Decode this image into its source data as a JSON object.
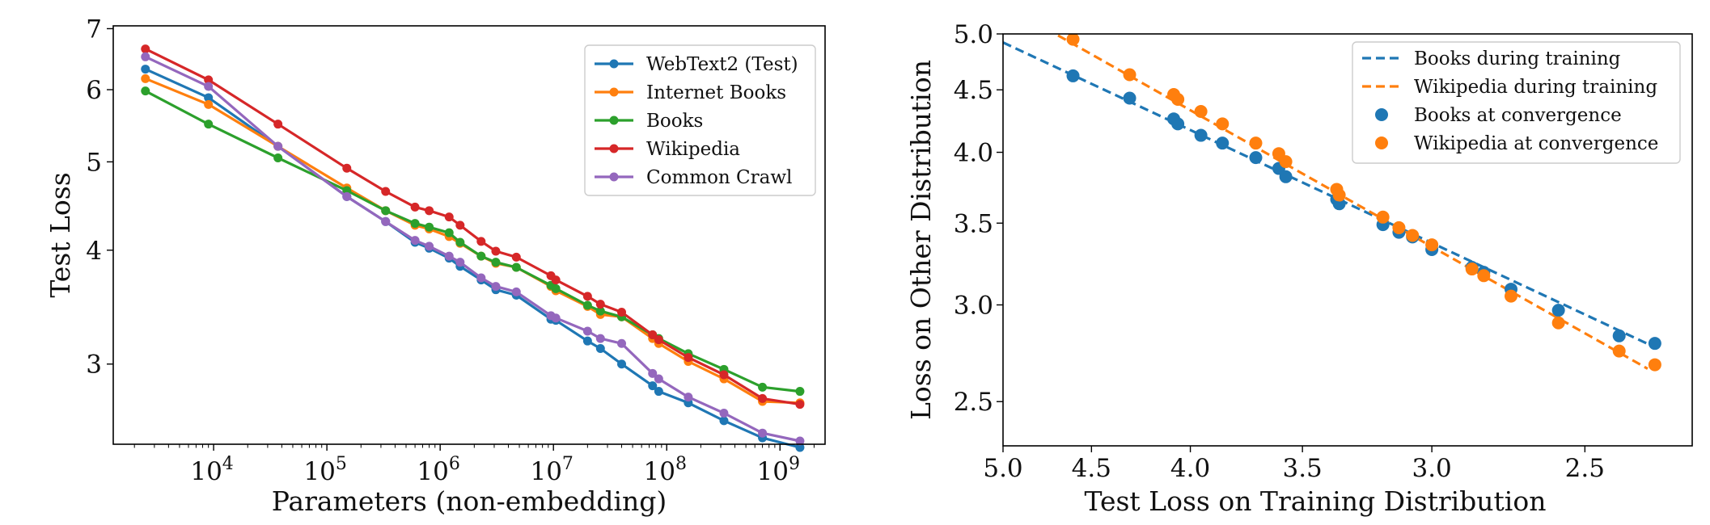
{
  "chart_data": [
    {
      "type": "line",
      "xlabel": "Parameters (non-embedding)",
      "ylabel": "Test Loss",
      "xscale": "log",
      "yscale": "log",
      "xlim": [
        1300,
        2500000000
      ],
      "ylim": [
        2.45,
        7.05
      ],
      "legend_position": "top-right",
      "grid": false,
      "x_ticks": [
        {
          "value": 10000,
          "base": "10",
          "exp": "4"
        },
        {
          "value": 100000,
          "base": "10",
          "exp": "5"
        },
        {
          "value": 1000000,
          "base": "10",
          "exp": "6"
        },
        {
          "value": 10000000,
          "base": "10",
          "exp": "7"
        },
        {
          "value": 100000000,
          "base": "10",
          "exp": "8"
        },
        {
          "value": 1000000000,
          "base": "10",
          "exp": "9"
        }
      ],
      "y_ticks": [
        {
          "value": 3,
          "label": "3"
        },
        {
          "value": 4,
          "label": "4"
        },
        {
          "value": 5,
          "label": "5"
        },
        {
          "value": 6,
          "label": "6"
        },
        {
          "value": 7,
          "label": "7"
        }
      ],
      "x": [
        2500,
        9000,
        37000,
        150000,
        330000,
        600000,
        800000,
        1200000,
        1500000,
        2300000,
        3100000,
        4700000,
        9500000,
        10500000,
        20000000,
        26000000,
        40000000,
        75000000,
        85000000,
        155000000,
        320000000,
        700000000,
        1500000000
      ],
      "series": [
        {
          "name": "WebText2 (Test)",
          "color": "#1f77b4",
          "values": [
            6.32,
            5.88,
            5.2,
            4.58,
            4.3,
            4.08,
            4.02,
            3.92,
            3.84,
            3.71,
            3.62,
            3.57,
            3.36,
            3.35,
            3.18,
            3.12,
            3.0,
            2.84,
            2.8,
            2.72,
            2.6,
            2.49,
            2.43
          ]
        },
        {
          "name": "Internet Books",
          "color": "#ff7f0e",
          "values": [
            6.17,
            5.78,
            5.2,
            4.68,
            4.42,
            4.26,
            4.22,
            4.14,
            4.07,
            3.94,
            3.87,
            3.83,
            3.65,
            3.61,
            3.47,
            3.4,
            3.38,
            3.2,
            3.16,
            3.02,
            2.89,
            2.73,
            2.72
          ]
        },
        {
          "name": "Books",
          "color": "#2ca02c",
          "values": [
            5.98,
            5.5,
            5.05,
            4.65,
            4.42,
            4.28,
            4.24,
            4.18,
            4.08,
            3.94,
            3.88,
            3.83,
            3.66,
            3.63,
            3.48,
            3.43,
            3.38,
            3.23,
            3.2,
            3.08,
            2.96,
            2.83,
            2.8
          ]
        },
        {
          "name": "Wikipedia",
          "color": "#d62728",
          "values": [
            6.65,
            6.15,
            5.5,
            4.92,
            4.64,
            4.46,
            4.42,
            4.35,
            4.26,
            4.09,
            3.99,
            3.93,
            3.75,
            3.71,
            3.56,
            3.49,
            3.42,
            3.23,
            3.19,
            3.05,
            2.92,
            2.75,
            2.71
          ]
        },
        {
          "name": "Common Crawl",
          "color": "#9467bd",
          "values": [
            6.52,
            6.05,
            5.2,
            4.58,
            4.3,
            4.1,
            4.04,
            3.94,
            3.88,
            3.73,
            3.65,
            3.6,
            3.39,
            3.37,
            3.26,
            3.2,
            3.16,
            2.93,
            2.89,
            2.76,
            2.65,
            2.52,
            2.47
          ]
        }
      ]
    },
    {
      "type": "scatter",
      "xlabel": "Test Loss on Training Distribution",
      "ylabel": "Loss on Other Distribution",
      "xscale": "log",
      "yscale": "log",
      "x_inverted": true,
      "xlim": [
        5.0,
        2.2
      ],
      "ylim": [
        2.3,
        5.0
      ],
      "legend_position": "top-right",
      "grid": false,
      "x_ticks": [
        {
          "value": 5.0,
          "label": "5.0"
        },
        {
          "value": 4.5,
          "label": "4.5"
        },
        {
          "value": 4.0,
          "label": "4.0"
        },
        {
          "value": 3.5,
          "label": "3.5"
        },
        {
          "value": 3.0,
          "label": "3.0"
        },
        {
          "value": 2.5,
          "label": "2.5"
        }
      ],
      "y_ticks": [
        {
          "value": 2.5,
          "label": "2.5"
        },
        {
          "value": 3.0,
          "label": "3.0"
        },
        {
          "value": 3.5,
          "label": "3.5"
        },
        {
          "value": 4.0,
          "label": "4.0"
        },
        {
          "value": 4.5,
          "label": "4.5"
        },
        {
          "value": 5.0,
          "label": "5.0"
        }
      ],
      "lines": [
        {
          "name": "Books during training",
          "color": "#1f77b4",
          "dashed": true,
          "x": [
            5.0,
            2.3
          ],
          "y": [
            4.92,
            2.77
          ]
        },
        {
          "name": "Wikipedia during training",
          "color": "#ff7f0e",
          "dashed": true,
          "x": [
            4.75,
            2.32
          ],
          "y": [
            5.05,
            2.66
          ]
        }
      ],
      "scatter": [
        {
          "name": "Books at convergence",
          "color": "#1f77b4",
          "x": [
            4.6,
            4.3,
            4.08,
            4.06,
            3.95,
            3.85,
            3.7,
            3.6,
            3.57,
            3.36,
            3.35,
            3.18,
            3.12,
            3.07,
            3.0,
            2.86,
            2.82,
            2.73,
            2.58,
            2.4,
            2.3
          ],
          "y": [
            4.62,
            4.43,
            4.26,
            4.22,
            4.13,
            4.07,
            3.96,
            3.88,
            3.82,
            3.66,
            3.63,
            3.49,
            3.44,
            3.41,
            3.33,
            3.22,
            3.19,
            3.09,
            2.97,
            2.83,
            2.79
          ]
        },
        {
          "name": "Wikipedia at convergence",
          "color": "#ff7f0e",
          "x": [
            4.6,
            4.3,
            4.08,
            4.06,
            3.95,
            3.85,
            3.7,
            3.6,
            3.57,
            3.36,
            3.35,
            3.18,
            3.12,
            3.07,
            3.0,
            2.86,
            2.82,
            2.73,
            2.58,
            2.4,
            2.3
          ],
          "y": [
            4.95,
            4.63,
            4.46,
            4.42,
            4.32,
            4.22,
            4.07,
            3.99,
            3.93,
            3.73,
            3.69,
            3.54,
            3.47,
            3.42,
            3.36,
            3.21,
            3.17,
            3.05,
            2.9,
            2.75,
            2.68
          ]
        }
      ]
    }
  ]
}
